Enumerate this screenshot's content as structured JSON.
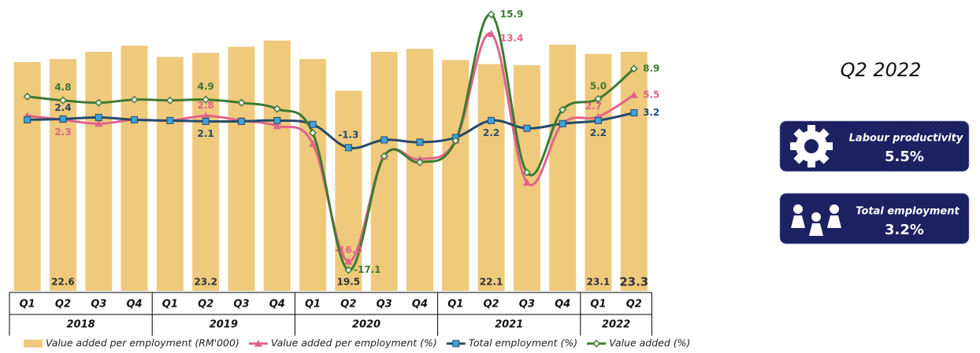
{
  "chart_data": {
    "type": "bar-line",
    "groups": [
      {
        "name": "2018",
        "categories": [
          "Q1",
          "Q2",
          "Q3",
          "Q4"
        ]
      },
      {
        "name": "2019",
        "categories": [
          "Q1",
          "Q2",
          "Q3",
          "Q4"
        ]
      },
      {
        "name": "2020",
        "categories": [
          "Q1",
          "Q2",
          "Q3",
          "Q4"
        ]
      },
      {
        "name": "2021",
        "categories": [
          "Q1",
          "Q2",
          "Q3",
          "Q4"
        ]
      },
      {
        "name": "2022",
        "categories": [
          "Q1",
          "Q2"
        ]
      }
    ],
    "series": [
      {
        "name": "Value added per employment (RM'000)",
        "kind": "bar",
        "color": "#efc97c",
        "values": [
          22.3,
          22.6,
          23.3,
          23.9,
          22.8,
          23.2,
          23.8,
          24.4,
          22.6,
          19.5,
          23.3,
          23.6,
          22.5,
          22.1,
          22.0,
          24.0,
          23.1,
          23.3
        ],
        "value_labels": [
          null,
          "22.6",
          null,
          null,
          null,
          "23.2",
          null,
          null,
          null,
          "19.5",
          null,
          null,
          null,
          "22.1",
          null,
          null,
          "23.1",
          "23.3"
        ]
      },
      {
        "name": "Value added per employment (%)",
        "kind": "line",
        "marker": "triangle",
        "color": "#e0648a",
        "values": [
          2.8,
          2.3,
          1.8,
          2.3,
          2.2,
          2.8,
          2.2,
          1.5,
          -0.8,
          -16.0,
          -2.4,
          -2.8,
          -0.4,
          13.4,
          -5.8,
          1.8,
          2.7,
          5.5
        ],
        "value_labels": [
          null,
          "2.3",
          null,
          null,
          null,
          "2.8",
          null,
          null,
          null,
          "-16.0",
          null,
          null,
          null,
          "13.4",
          null,
          null,
          "2.7",
          "5.5"
        ]
      },
      {
        "name": "Total employment (%)",
        "kind": "line",
        "marker": "square",
        "color": "#254b6a",
        "values": [
          2.3,
          2.4,
          2.6,
          2.3,
          2.2,
          2.1,
          2.1,
          2.2,
          1.7,
          -1.3,
          -0.3,
          -0.6,
          0.0,
          2.2,
          1.2,
          1.8,
          2.2,
          3.2
        ],
        "value_labels": [
          null,
          "2.4",
          null,
          null,
          null,
          "2.1",
          null,
          null,
          null,
          "-1.3",
          null,
          null,
          null,
          "2.2",
          null,
          null,
          "2.2",
          "3.2"
        ]
      },
      {
        "name": "Value added  (%)",
        "kind": "line",
        "marker": "diamond",
        "color": "#3d7a32",
        "values": [
          5.3,
          4.8,
          4.5,
          4.9,
          4.8,
          4.9,
          4.5,
          3.7,
          0.6,
          -17.1,
          -2.4,
          -3.2,
          -0.4,
          15.9,
          -4.5,
          3.6,
          5.0,
          8.9
        ],
        "value_labels": [
          null,
          "4.8",
          null,
          null,
          null,
          "4.9",
          null,
          null,
          null,
          "-17.1",
          null,
          null,
          null,
          "15.9",
          null,
          null,
          "5.0",
          "8.9"
        ]
      }
    ]
  },
  "panel": {
    "title": "Q2 2022",
    "cards": [
      {
        "label": "Labour productivity",
        "value": "5.5%"
      },
      {
        "label": "Total employment",
        "value": "3.2%"
      }
    ]
  }
}
